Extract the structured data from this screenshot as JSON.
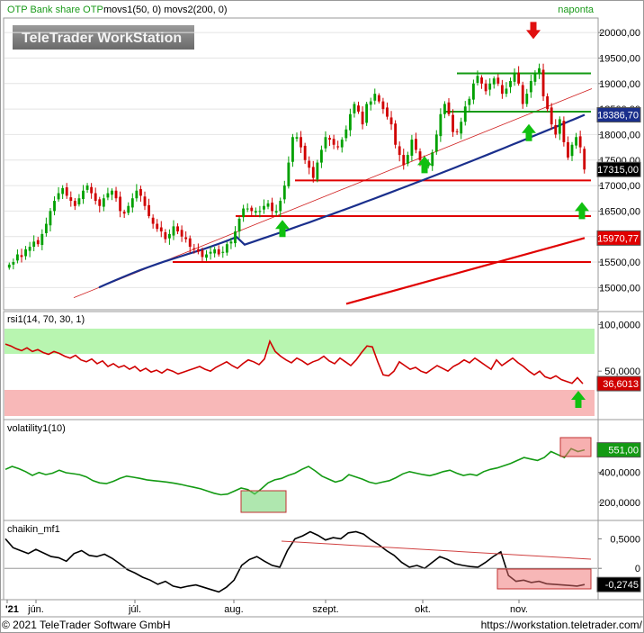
{
  "header": {
    "title": "OTP Bank share OTP",
    "indicators": "movs1(50, 0)  movs2(200, 0)",
    "interval": "naponta",
    "watermark": "TeleTrader WorkStation"
  },
  "footer": {
    "copyright": "© 2021  TeleTrader Software GmbH",
    "url": "https://workstation.teletrader.com/"
  },
  "x_axis": {
    "labels": [
      "'21",
      "jún.",
      "júl.",
      "aug.",
      "szept.",
      "okt.",
      "nov."
    ]
  },
  "colors": {
    "bull": "#00a000",
    "bear": "#d00000",
    "ma50": "#1a2f8c",
    "ma200": "#e00000",
    "rsi_upper_zone": "#b8f5b0",
    "rsi_lower_zone": "#f8b8b8",
    "volatility_line": "#139a13",
    "chaikin_line": "#000000",
    "level_line": "#e00000",
    "trend_line": "#139a13"
  },
  "chart_data": [
    {
      "type": "candlestick",
      "title": "OTP Bank share OTP",
      "period": "daily (naponta)",
      "y_ticks": [
        15000,
        15500,
        16000,
        16500,
        17000,
        17500,
        18000,
        18500,
        19000,
        19500,
        20000
      ],
      "ylim": [
        14600,
        20250
      ],
      "price_marker": {
        "value": 17315,
        "label": "17315,00"
      },
      "ma50_marker": {
        "value": 18386.7,
        "label": "18386,70"
      },
      "ma200_marker": {
        "value": 15970.77,
        "label": "15970,77"
      },
      "closes": [
        15450,
        15500,
        15650,
        15600,
        15750,
        15800,
        15900,
        15850,
        16050,
        16250,
        16500,
        16700,
        16850,
        16950,
        16800,
        16700,
        16600,
        16750,
        16900,
        17000,
        16850,
        16700,
        16600,
        16750,
        16850,
        16900,
        16750,
        16500,
        16450,
        16600,
        16750,
        16900,
        16800,
        16600,
        16400,
        16250,
        16150,
        16100,
        15950,
        16050,
        16200,
        16100,
        16000,
        15950,
        15800,
        15750,
        15700,
        15600,
        15650,
        15700,
        15750,
        15650,
        15700,
        15850,
        15900,
        16100,
        16350,
        16550,
        16550,
        16500,
        16500,
        16500,
        16600,
        16650,
        16500,
        16500,
        16700,
        17000,
        17450,
        17950,
        17950,
        17750,
        17500,
        17350,
        17150,
        17450,
        17700,
        17950,
        17900,
        17800,
        17750,
        17900,
        18100,
        18400,
        18600,
        18450,
        18200,
        18600,
        18650,
        18800,
        18650,
        18500,
        18350,
        18200,
        17800,
        17600,
        17400,
        17600,
        17900,
        17700,
        17500,
        17350,
        17400,
        17650,
        18000,
        18400,
        18600,
        18400,
        18050,
        18050,
        18250,
        18550,
        18700,
        19000,
        19150,
        19000,
        18850,
        19000,
        19100,
        19000,
        18800,
        18900,
        19050,
        19200,
        19000,
        18600,
        18800,
        19050,
        19200,
        19300,
        18750,
        18500,
        18200,
        18000,
        18300,
        17850,
        17550,
        17800,
        17950,
        17750,
        17315
      ],
      "ma50_endpoints": {
        "from": 15000,
        "to": 18386.7
      },
      "ma200_endpoints": {
        "from": 14680,
        "to": 15970.77
      },
      "horizontal_levels": [
        17100,
        16400,
        15500
      ],
      "trend_lines": [
        {
          "kind": "resistance",
          "value": 19200
        },
        {
          "kind": "support",
          "value": 18450
        }
      ],
      "signal_arrows": [
        "up",
        "up",
        "up",
        "down",
        "up"
      ]
    },
    {
      "type": "line",
      "title": "rsi1(14, 70, 30, 1)",
      "y_ticks": [
        50,
        100
      ],
      "tick_labels": [
        "50,0000",
        "100,0000"
      ],
      "ylim": [
        0,
        110
      ],
      "zones": {
        "overbought": 70,
        "oversold": 30
      },
      "last_value": {
        "value": 36.6013,
        "label": "36,6013"
      },
      "values": [
        79,
        77,
        74,
        72,
        75,
        71,
        73,
        70,
        68,
        71,
        69,
        66,
        64,
        67,
        62,
        60,
        63,
        58,
        61,
        55,
        58,
        54,
        56,
        52,
        55,
        50,
        53,
        49,
        51,
        48,
        52,
        50,
        47,
        49,
        51,
        53,
        55,
        52,
        50,
        54,
        57,
        60,
        56,
        53,
        58,
        62,
        60,
        57,
        63,
        82,
        71,
        66,
        62,
        59,
        64,
        61,
        57,
        60,
        62,
        66,
        61,
        58,
        64,
        60,
        56,
        62,
        70,
        77,
        76,
        60,
        46,
        45,
        50,
        60,
        56,
        52,
        54,
        50,
        48,
        52,
        56,
        53,
        50,
        55,
        58,
        62,
        59,
        64,
        60,
        56,
        52,
        62,
        56,
        60,
        64,
        59,
        55,
        50,
        46,
        50,
        44,
        42,
        45,
        41,
        39,
        37,
        43,
        36.6
      ]
    },
    {
      "type": "line",
      "title": "volatility1(10)",
      "y_ticks": [
        200,
        400
      ],
      "tick_labels": [
        "200,0000",
        "400,0000"
      ],
      "ylim": [
        90,
        730
      ],
      "last_value": {
        "value": 551,
        "label": "551,00"
      },
      "values": [
        420,
        440,
        425,
        405,
        380,
        400,
        385,
        395,
        415,
        398,
        392,
        385,
        370,
        345,
        330,
        325,
        340,
        360,
        375,
        368,
        360,
        350,
        345,
        340,
        335,
        328,
        320,
        310,
        300,
        290,
        275,
        260,
        250,
        255,
        275,
        295,
        285,
        255,
        290,
        330,
        350,
        360,
        380,
        395,
        420,
        440,
        410,
        375,
        355,
        335,
        348,
        385,
        370,
        355,
        335,
        325,
        335,
        345,
        365,
        390,
        405,
        395,
        385,
        378,
        390,
        405,
        415,
        395,
        380,
        388,
        380,
        405,
        420,
        430,
        445,
        460,
        480,
        500,
        490,
        480,
        500,
        540,
        520,
        500,
        560,
        540,
        551
      ]
    },
    {
      "type": "line",
      "title": "chaikin_mf1",
      "y_ticks": [
        0,
        0.5
      ],
      "tick_labels": [
        "0",
        "0,5000"
      ],
      "ylim": [
        -0.5,
        0.75
      ],
      "last_value": {
        "value": -0.2745,
        "label": "-0,2745"
      },
      "values": [
        0.5,
        0.35,
        0.3,
        0.25,
        0.32,
        0.26,
        0.2,
        0.18,
        0.12,
        0.25,
        0.3,
        0.22,
        0.2,
        0.24,
        0.17,
        0.08,
        -0.02,
        -0.08,
        -0.15,
        -0.2,
        -0.27,
        -0.22,
        -0.3,
        -0.33,
        -0.3,
        -0.28,
        -0.32,
        -0.36,
        -0.4,
        -0.32,
        -0.2,
        0.05,
        0.15,
        0.2,
        0.12,
        0.05,
        0.02,
        0.3,
        0.5,
        0.55,
        0.62,
        0.56,
        0.48,
        0.52,
        0.5,
        0.6,
        0.62,
        0.58,
        0.48,
        0.4,
        0.3,
        0.22,
        0.1,
        0.02,
        0.05,
        0.0,
        0.1,
        0.2,
        0.15,
        0.08,
        0.05,
        0.03,
        0.02,
        0.1,
        0.2,
        0.28,
        -0.12,
        -0.22,
        -0.2,
        -0.24,
        -0.22,
        -0.26,
        -0.27,
        -0.28,
        -0.29,
        -0.3,
        -0.2745
      ]
    }
  ]
}
